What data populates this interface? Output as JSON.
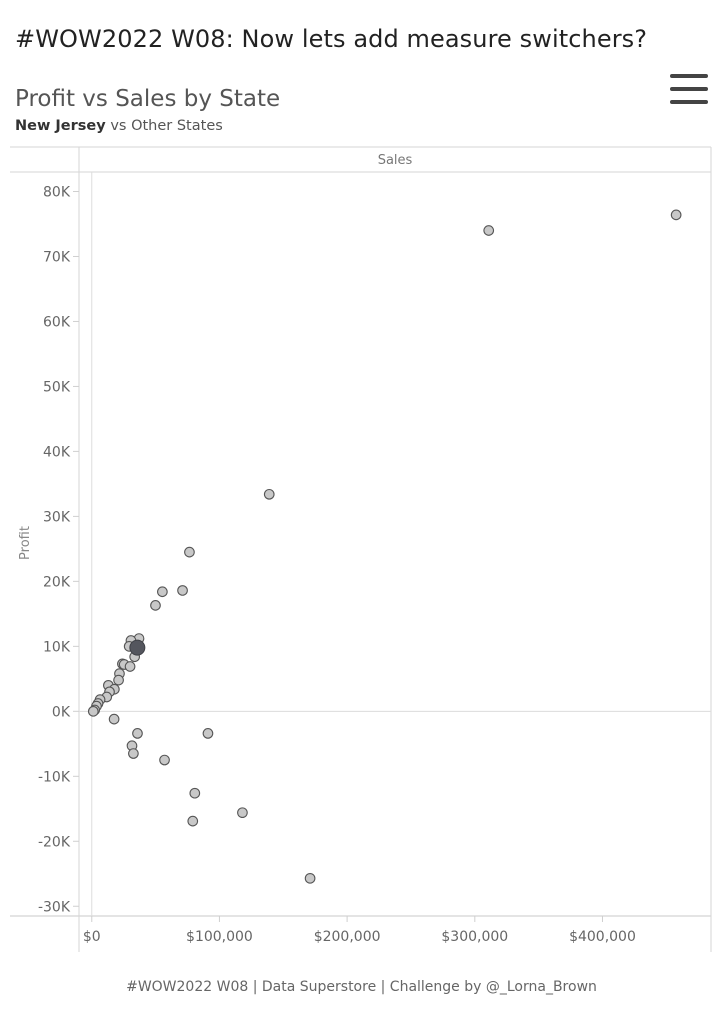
{
  "header": {
    "dashboard_title": "#WOW2022 W08: Now lets add measure switchers?",
    "chart_title": "Profit vs Sales by State",
    "subtitle_highlight": "New Jersey",
    "subtitle_rest": " vs Other States",
    "menu_icon": "hamburger-menu-icon"
  },
  "footer": {
    "text": "#WOW2022 W08 | Data Superstore | Challenge by @_Lorna_Brown"
  },
  "colors": {
    "point_fill": "#c8c8c8",
    "point_stroke": "#555555",
    "highlight_fill": "#54565e",
    "grid": "#dedede"
  },
  "chart_data": {
    "type": "scatter",
    "title": "Profit vs Sales by State",
    "xlabel": "Sales",
    "ylabel": "Profit",
    "xlim": [
      -10000,
      485000
    ],
    "ylim": [
      -31500,
      83000
    ],
    "x_ticks": [
      0,
      100000,
      200000,
      300000,
      400000
    ],
    "x_tick_labels": [
      "$0",
      "$100,000",
      "$200,000",
      "$300,000",
      "$400,000"
    ],
    "y_ticks": [
      -30000,
      -20000,
      -10000,
      0,
      10000,
      20000,
      30000,
      40000,
      50000,
      60000,
      70000,
      80000
    ],
    "y_tick_labels": [
      "-30K",
      "-20K",
      "-10K",
      "0K",
      "10K",
      "20K",
      "30K",
      "40K",
      "50K",
      "60K",
      "70K",
      "80K"
    ],
    "highlight": {
      "name": "New Jersey",
      "x": 35700,
      "y": 9800
    },
    "points": [
      {
        "x": 457700,
        "y": 76400
      },
      {
        "x": 310900,
        "y": 74000
      },
      {
        "x": 139000,
        "y": 33400
      },
      {
        "x": 76500,
        "y": 24500
      },
      {
        "x": 55300,
        "y": 18400
      },
      {
        "x": 71100,
        "y": 18600
      },
      {
        "x": 49900,
        "y": 16300
      },
      {
        "x": 37000,
        "y": 11200
      },
      {
        "x": 30700,
        "y": 10900
      },
      {
        "x": 29300,
        "y": 10000
      },
      {
        "x": 35000,
        "y": 9500
      },
      {
        "x": 33600,
        "y": 8400
      },
      {
        "x": 24000,
        "y": 7300
      },
      {
        "x": 25400,
        "y": 7200
      },
      {
        "x": 30000,
        "y": 6900
      },
      {
        "x": 21700,
        "y": 5800
      },
      {
        "x": 21000,
        "y": 4800
      },
      {
        "x": 13000,
        "y": 4000
      },
      {
        "x": 17700,
        "y": 3400
      },
      {
        "x": 13900,
        "y": 3000
      },
      {
        "x": 11700,
        "y": 2200
      },
      {
        "x": 6500,
        "y": 1800
      },
      {
        "x": 4900,
        "y": 1200
      },
      {
        "x": 3700,
        "y": 800
      },
      {
        "x": 2300,
        "y": 200
      },
      {
        "x": 1200,
        "y": 0
      },
      {
        "x": 17500,
        "y": -1200
      },
      {
        "x": 35800,
        "y": -3400
      },
      {
        "x": 91000,
        "y": -3400
      },
      {
        "x": 31500,
        "y": -5300
      },
      {
        "x": 32600,
        "y": -6500
      },
      {
        "x": 57000,
        "y": -7500
      },
      {
        "x": 80700,
        "y": -12600
      },
      {
        "x": 79100,
        "y": -16900
      },
      {
        "x": 118000,
        "y": -15600
      },
      {
        "x": 171000,
        "y": -25700
      }
    ]
  }
}
